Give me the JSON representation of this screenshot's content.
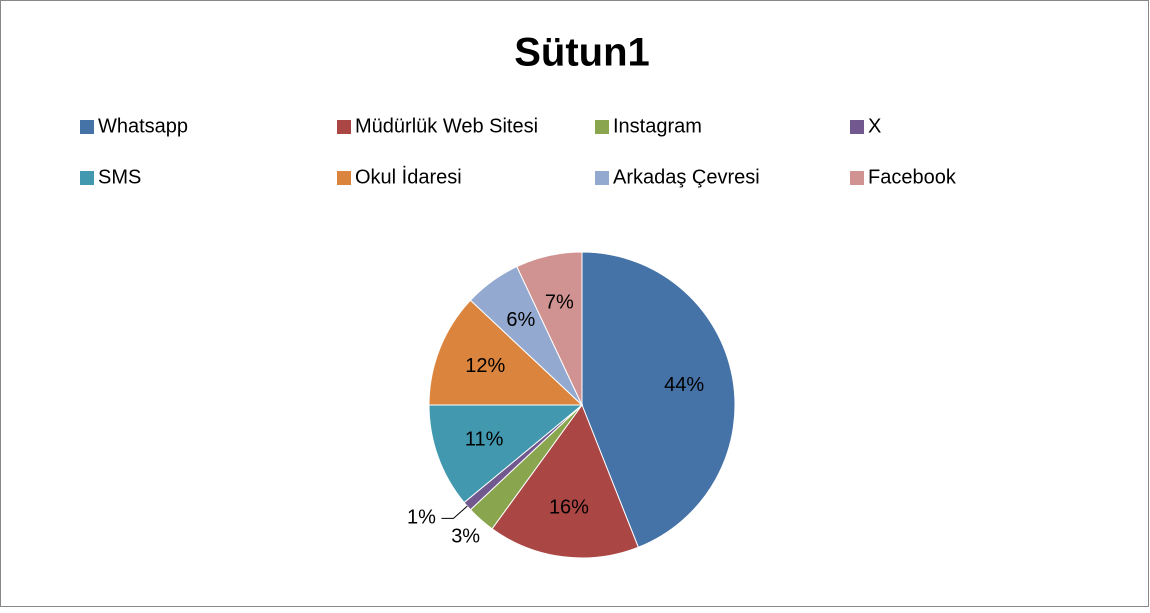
{
  "chart_data": {
    "type": "pie",
    "title": "Sütun1",
    "categories": [
      "Whatsapp",
      "Müdürlük Web Sitesi",
      "Instagram",
      "X",
      "SMS",
      "Okul İdaresi",
      "Arkadaş Çevresi",
      "Facebook"
    ],
    "values": [
      44,
      16,
      3,
      1,
      11,
      12,
      6,
      7
    ],
    "value_labels": [
      "44%",
      "16%",
      "3%",
      "1%",
      "11%",
      "12%",
      "6%",
      "7%"
    ],
    "colors": [
      "#4572A7",
      "#AA4643",
      "#89A54E",
      "#71588F",
      "#4198AF",
      "#DB843D",
      "#93A9CF",
      "#D19392"
    ],
    "legend": "top"
  }
}
